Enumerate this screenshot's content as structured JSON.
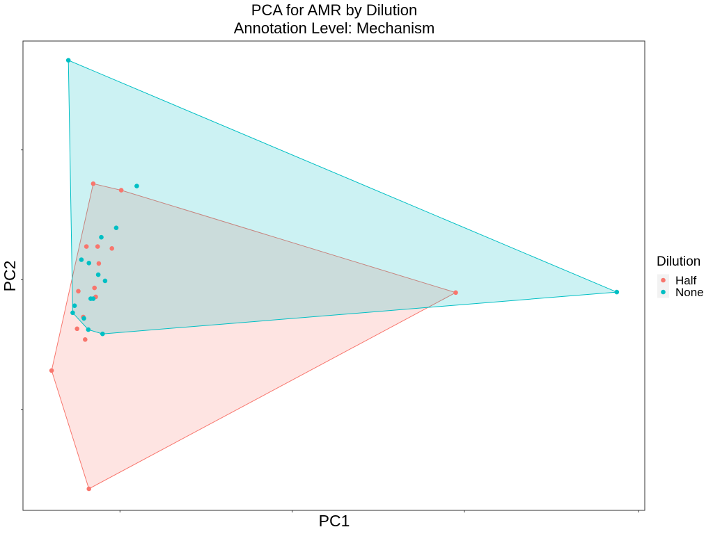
{
  "chart_data": {
    "type": "scatter",
    "title": "PCA for AMR by Dilution",
    "subtitle": "Annotation Level: Mechanism",
    "xlabel": "PC1",
    "ylabel": "PC2",
    "xlim": [
      0,
      1
    ],
    "ylim": [
      0,
      1
    ],
    "grid": false,
    "hulls": true,
    "legend": {
      "title": "Dilution",
      "placement": "right",
      "entries": [
        "Half",
        "None"
      ]
    },
    "series": [
      {
        "name": "Half",
        "color": "#F8766D",
        "hull_fill": "#F8766D",
        "points": [
          {
            "x": 0.046,
            "y": 0.298
          },
          {
            "x": 0.106,
            "y": 0.046
          },
          {
            "x": 0.696,
            "y": 0.464
          },
          {
            "x": 0.113,
            "y": 0.696
          },
          {
            "x": 0.158,
            "y": 0.682
          },
          {
            "x": 0.102,
            "y": 0.562
          },
          {
            "x": 0.12,
            "y": 0.562
          },
          {
            "x": 0.143,
            "y": 0.558
          },
          {
            "x": 0.122,
            "y": 0.526
          },
          {
            "x": 0.089,
            "y": 0.467
          },
          {
            "x": 0.115,
            "y": 0.474
          },
          {
            "x": 0.117,
            "y": 0.455
          },
          {
            "x": 0.097,
            "y": 0.412
          },
          {
            "x": 0.087,
            "y": 0.387
          },
          {
            "x": 0.1,
            "y": 0.364
          }
        ]
      },
      {
        "name": "None",
        "color": "#00BFC4",
        "hull_fill": "#00BFC4",
        "points": [
          {
            "x": 0.073,
            "y": 0.959
          },
          {
            "x": 0.955,
            "y": 0.465
          },
          {
            "x": 0.183,
            "y": 0.691
          },
          {
            "x": 0.15,
            "y": 0.602
          },
          {
            "x": 0.126,
            "y": 0.582
          },
          {
            "x": 0.094,
            "y": 0.534
          },
          {
            "x": 0.106,
            "y": 0.527
          },
          {
            "x": 0.121,
            "y": 0.502
          },
          {
            "x": 0.132,
            "y": 0.489
          },
          {
            "x": 0.109,
            "y": 0.451
          },
          {
            "x": 0.113,
            "y": 0.451
          },
          {
            "x": 0.083,
            "y": 0.436
          },
          {
            "x": 0.08,
            "y": 0.421
          },
          {
            "x": 0.098,
            "y": 0.409
          },
          {
            "x": 0.105,
            "y": 0.385
          },
          {
            "x": 0.128,
            "y": 0.376
          }
        ]
      }
    ]
  }
}
